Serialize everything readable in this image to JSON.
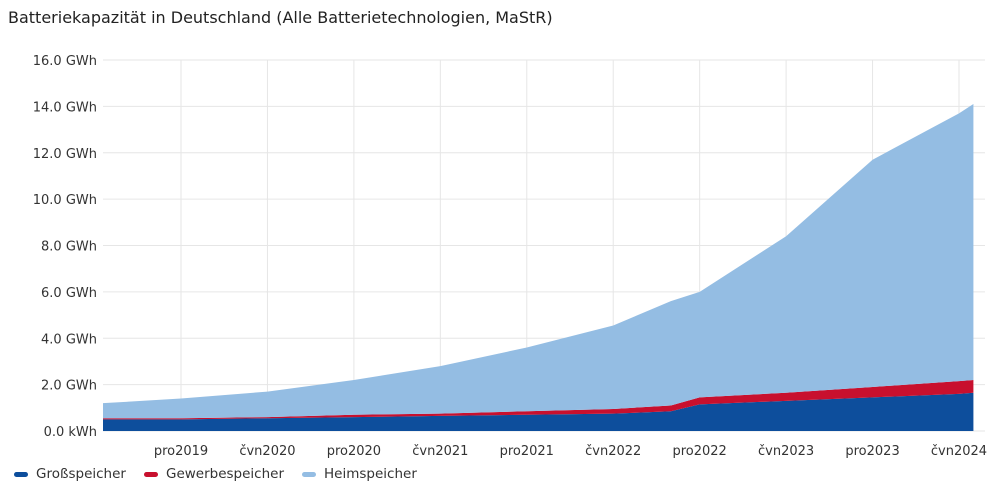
{
  "chart_data": {
    "type": "area",
    "stacked": true,
    "title": "Batteriekapazität in Deutschland (Alle Batterietechnologien, MaStR)",
    "xlabel": "",
    "ylabel": "",
    "ylim": [
      0,
      16
    ],
    "y_ticks": [
      "0.0 kWh",
      "2.0 GWh",
      "4.0 GWh",
      "6.0 GWh",
      "8.0 GWh",
      "10.0 GWh",
      "12.0 GWh",
      "14.0 GWh",
      "16.0 GWh"
    ],
    "x_ticks": [
      "pro2019",
      "čvn2020",
      "pro2020",
      "čvn2021",
      "pro2021",
      "čvn2022",
      "pro2022",
      "čvn2023",
      "pro2023",
      "čvn2024"
    ],
    "x": [
      "2019-07",
      "2019-12",
      "2020-06",
      "2020-12",
      "2021-06",
      "2021-12",
      "2022-06",
      "2022-10",
      "2022-12",
      "2023-06",
      "2023-12",
      "2024-06",
      "2024-07"
    ],
    "series": [
      {
        "name": "Großspeicher",
        "color": "#0d4e9c",
        "values": [
          0.5,
          0.5,
          0.55,
          0.6,
          0.65,
          0.7,
          0.75,
          0.85,
          1.15,
          1.3,
          1.45,
          1.6,
          1.65
        ]
      },
      {
        "name": "Gewerbespeicher",
        "color": "#c8102e",
        "values": [
          0.05,
          0.05,
          0.05,
          0.1,
          0.1,
          0.15,
          0.2,
          0.25,
          0.3,
          0.35,
          0.45,
          0.55,
          0.55
        ]
      },
      {
        "name": "Heimspeicher",
        "color": "#94bde3",
        "values": [
          0.65,
          0.85,
          1.1,
          1.5,
          2.05,
          2.75,
          3.6,
          4.5,
          4.55,
          6.75,
          9.8,
          11.55,
          11.9
        ]
      }
    ],
    "grid": true,
    "legend_position": "bottom-left"
  }
}
